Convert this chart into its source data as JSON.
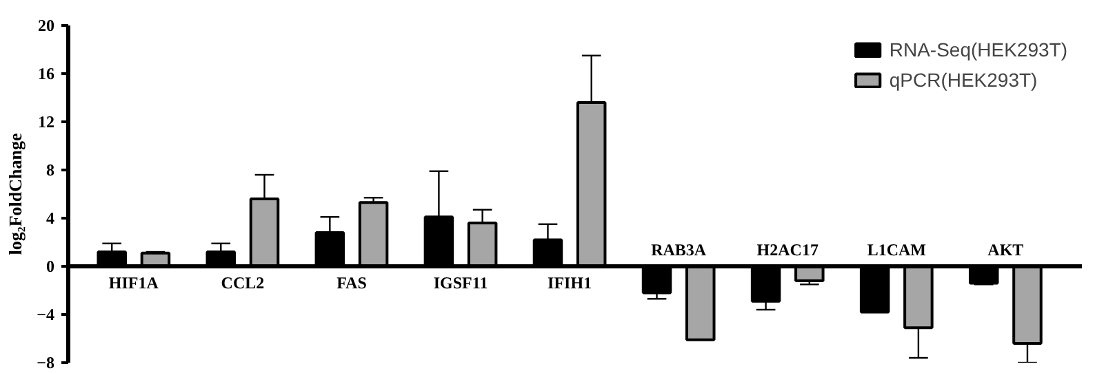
{
  "chart_data": {
    "type": "bar",
    "ylabel": "log₂FoldChange",
    "categories": [
      "HIF1A",
      "CCL2",
      "FAS",
      "IGSF11",
      "IFIH1",
      "RAB3A",
      "H2AC17",
      "L1CAM",
      "AKT"
    ],
    "series": [
      {
        "name": "RNA-Seq(HEK293T)",
        "color": "#000000",
        "values": [
          1.2,
          1.2,
          2.8,
          4.1,
          2.2,
          -2.2,
          -2.9,
          -3.8,
          -1.4
        ],
        "errors": [
          [
            1.2,
            1.9
          ],
          [
            1.2,
            1.9
          ],
          [
            2.8,
            4.1
          ],
          [
            4.1,
            7.9
          ],
          [
            2.2,
            3.5
          ],
          [
            -2.7,
            -2.2
          ],
          [
            -3.6,
            -2.9
          ],
          null,
          [
            -1.5,
            -1.4
          ]
        ]
      },
      {
        "name": "qPCR(HEK293T)",
        "color": "#a6a6a6",
        "values": [
          1.1,
          5.6,
          5.3,
          3.6,
          13.6,
          -6.1,
          -1.2,
          -5.1,
          -6.4
        ],
        "errors": [
          [
            1.1,
            1.2
          ],
          [
            5.6,
            7.6
          ],
          [
            5.3,
            5.7
          ],
          [
            3.6,
            4.7
          ],
          [
            13.6,
            17.5
          ],
          null,
          [
            -1.5,
            -1.2
          ],
          [
            -7.6,
            -5.1
          ],
          [
            -8.0,
            -6.4
          ]
        ]
      }
    ],
    "ylim": [
      -8,
      20
    ],
    "yticks": [
      -8,
      -4,
      0,
      4,
      8,
      12,
      16,
      20
    ],
    "grid": false,
    "legend": "top right"
  }
}
